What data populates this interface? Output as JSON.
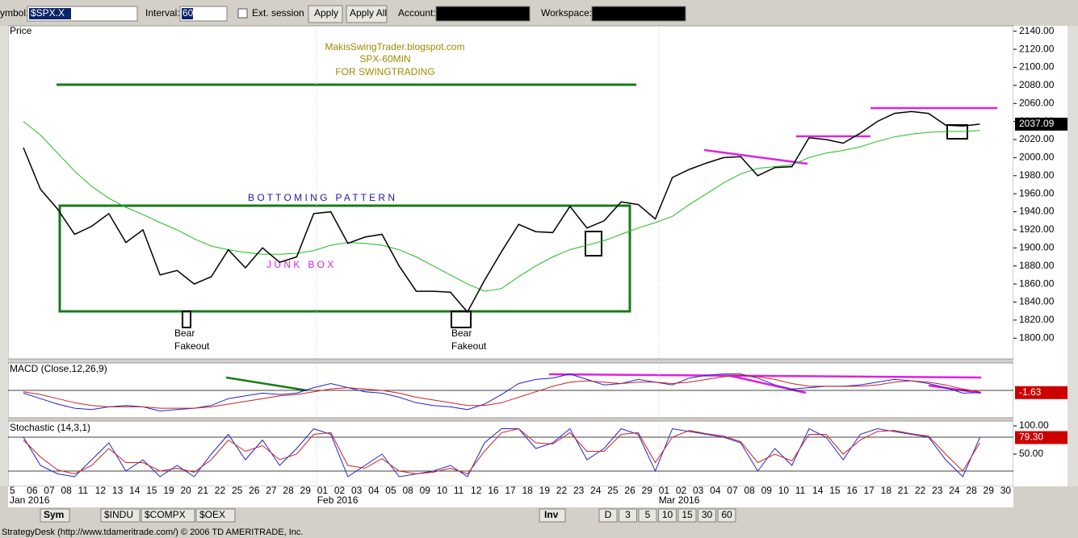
{
  "toolbar": {
    "symbol_label": "ymbol:",
    "symbol": "$SPX.X",
    "interval_label": "Interval:",
    "interval": "60",
    "ext_session": "Ext. session",
    "apply": "Apply",
    "apply_all": "Apply All",
    "account_label": "Account:",
    "workspace_label": "Workspace:"
  },
  "chart_data": [
    {
      "type": "line",
      "title": "Price",
      "color": "#000000",
      "ma_color": "#22bb22",
      "categories": [
        "5",
        "06",
        "07",
        "08",
        "11",
        "12",
        "13",
        "14",
        "15",
        "19",
        "20",
        "21",
        "22",
        "25",
        "26",
        "27",
        "28",
        "29",
        "01",
        "02",
        "03",
        "04",
        "05",
        "08",
        "09",
        "10",
        "11",
        "12",
        "16",
        "17",
        "18",
        "19",
        "22",
        "23",
        "24",
        "25",
        "26",
        "29",
        "01",
        "02",
        "03",
        "04",
        "07",
        "08",
        "09",
        "10",
        "11",
        "14",
        "15",
        "16",
        "17",
        "18",
        "21",
        "22",
        "23",
        "24",
        "28",
        "29",
        "30"
      ],
      "months": [
        "Jan 2016",
        "Feb 2016",
        "Mar 2016"
      ],
      "values": [
        2011,
        1965,
        1943,
        1915,
        1924,
        1938,
        1906,
        1920,
        1870,
        1875,
        1860,
        1868,
        1898,
        1878,
        1900,
        1884,
        1890,
        1938,
        1940,
        1905,
        1912,
        1915,
        1880,
        1852,
        1852,
        1851,
        1829,
        1864,
        1896,
        1926,
        1918,
        1917,
        1946,
        1922,
        1930,
        1951,
        1948,
        1932,
        1978,
        1987,
        1994,
        2000,
        2001,
        1980,
        1989,
        1990,
        2022,
        2020,
        2016,
        2027,
        2040,
        2049,
        2051,
        2049,
        2036,
        2035,
        2037.09,
        null,
        null
      ],
      "ma": [
        2040,
        2025,
        2005,
        1985,
        1968,
        1955,
        1945,
        1937,
        1928,
        1920,
        1910,
        1902,
        1898,
        1895,
        1893,
        1893,
        1894,
        1897,
        1903,
        1906,
        1905,
        1903,
        1898,
        1890,
        1880,
        1870,
        1860,
        1852,
        1855,
        1868,
        1880,
        1890,
        1898,
        1903,
        1908,
        1915,
        1922,
        1928,
        1935,
        1948,
        1960,
        1972,
        1982,
        1988,
        1990,
        1992,
        2000,
        2005,
        2008,
        2012,
        2018,
        2023,
        2026,
        2028,
        2029,
        2029,
        2030,
        null,
        null
      ],
      "ylim": [
        1777,
        2146
      ],
      "yticks": [
        {
          "value": 2140,
          "label": "2140.00"
        },
        {
          "value": 2120,
          "label": "2120.00"
        },
        {
          "value": 2100,
          "label": "2100.00"
        },
        {
          "value": 2080,
          "label": "2080.00"
        },
        {
          "value": 2060,
          "label": "2060.00"
        },
        {
          "value": 2040,
          "label": "2040.00"
        },
        {
          "value": 2020,
          "label": "2020.00"
        },
        {
          "value": 2000,
          "label": "2000.00"
        },
        {
          "value": 1980,
          "label": "1980.00"
        },
        {
          "value": 1960,
          "label": "1960.00"
        },
        {
          "value": 1940,
          "label": "1940.00"
        },
        {
          "value": 1920,
          "label": "1920.00"
        },
        {
          "value": 1900,
          "label": "1900.00"
        },
        {
          "value": 1880,
          "label": "1880.00"
        },
        {
          "value": 1860,
          "label": "1860.00"
        },
        {
          "value": 1840,
          "label": "1840.00"
        },
        {
          "value": 1820,
          "label": "1820.00"
        },
        {
          "value": 1800,
          "label": "1800.00"
        }
      ],
      "annotations": {
        "site": "MakisSwingTrader.blogspot.com",
        "chart": "SPX-60MIN",
        "purpose": "FOR SWINGTRADING",
        "pattern": "B O T T O M I N G   P A T T E R N",
        "box": "J U N K   B O X",
        "bear1": "Bear",
        "fake1": "Fakeout",
        "bear2": "Bear",
        "fake2": "Fakeout"
      }
    },
    {
      "type": "line",
      "title": "MACD (Close,12,26,9)",
      "ylim": [
        -20,
        20
      ],
      "series": [
        {
          "color": "#2222cc",
          "values": [
            -2,
            -6,
            -10,
            -13,
            -14,
            -12,
            -11,
            -12,
            -15,
            -14,
            -13,
            -11,
            -6,
            -4,
            -2,
            -3,
            -2,
            2,
            5,
            2,
            -1,
            -2,
            -5,
            -9,
            -11,
            -12,
            -14,
            -10,
            -3,
            5,
            8,
            9,
            12,
            8,
            4,
            5,
            8,
            6,
            4,
            9,
            11,
            12,
            12,
            9,
            4,
            1,
            2,
            3,
            3,
            4,
            6,
            8,
            7,
            5,
            2,
            -2,
            -1.63,
            null,
            null
          ]
        },
        {
          "color": "#cc2222",
          "values": [
            -1,
            -3,
            -6,
            -9,
            -11,
            -12,
            -12,
            -12,
            -13,
            -13,
            -13,
            -12,
            -10,
            -8,
            -6,
            -4,
            -3,
            -1,
            1,
            2,
            1,
            0,
            -2,
            -5,
            -7,
            -9,
            -11,
            -11,
            -9,
            -5,
            -1,
            3,
            6,
            7,
            6,
            5,
            6,
            6,
            5,
            6,
            8,
            10,
            11,
            10,
            8,
            5,
            3,
            3,
            3,
            3,
            4,
            6,
            7,
            6,
            4,
            1,
            -1,
            null,
            null
          ]
        }
      ]
    },
    {
      "type": "line",
      "title": "Stochastic (14,3,1)",
      "ylim": [
        -7.1,
        108.6
      ],
      "yticks": [
        {
          "value": 100,
          "label": "100.00"
        },
        {
          "value": 50,
          "label": "50.00"
        }
      ],
      "levels": [
        80,
        20
      ],
      "last_label": "79.30",
      "series": [
        {
          "color": "#2222cc",
          "values": [
            80,
            30,
            15,
            10,
            40,
            70,
            20,
            40,
            10,
            30,
            10,
            50,
            85,
            40,
            75,
            30,
            60,
            95,
            85,
            10,
            30,
            50,
            10,
            15,
            20,
            30,
            10,
            70,
            95,
            95,
            60,
            70,
            95,
            40,
            60,
            95,
            85,
            20,
            95,
            90,
            85,
            80,
            70,
            20,
            60,
            30,
            95,
            80,
            40,
            85,
            95,
            90,
            85,
            80,
            40,
            10,
            79.3,
            null,
            null
          ]
        },
        {
          "color": "#cc2222",
          "values": [
            75,
            45,
            22,
            15,
            30,
            60,
            35,
            35,
            20,
            25,
            18,
            40,
            75,
            55,
            65,
            40,
            50,
            85,
            88,
            30,
            25,
            42,
            20,
            15,
            18,
            25,
            15,
            55,
            88,
            95,
            70,
            68,
            88,
            55,
            55,
            85,
            88,
            35,
            80,
            92,
            86,
            82,
            72,
            35,
            50,
            38,
            85,
            85,
            50,
            75,
            90,
            92,
            86,
            82,
            50,
            20,
            70,
            null,
            null
          ]
        }
      ]
    }
  ],
  "tabs": {
    "sym": "Sym",
    "t1": "$INDU",
    "t2": "$COMPX",
    "t3": "$OEX",
    "inv": "Inv",
    "d": "D",
    "i3": "3",
    "i5": "5",
    "i10": "10",
    "i15": "15",
    "i30": "30",
    "i60": "60"
  },
  "status": "StrategyDesk (http://www.tdameritrade.com/) © 2006 TD AMERITRADE, Inc."
}
